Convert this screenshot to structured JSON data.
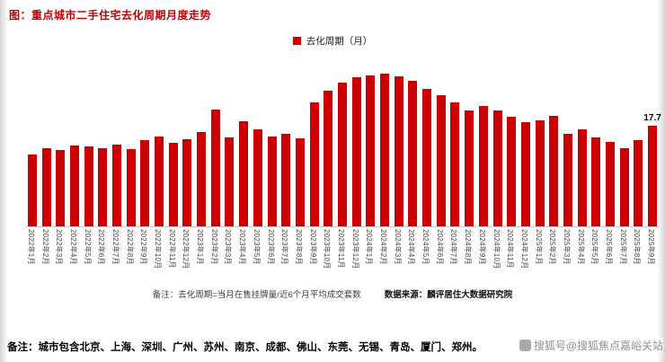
{
  "header": {
    "title": "图：重点城市二手住宅去化周期月度走势"
  },
  "legend": {
    "label": "去化周期（月）",
    "swatch_color": "#CC0000"
  },
  "chart_data": {
    "type": "bar",
    "title": "图：重点城市二手住宅去化周期月度走势",
    "legend": [
      "去化周期（月）"
    ],
    "legend_position": "top",
    "bar_color": "#CC0000",
    "grid": false,
    "xlabel": "",
    "ylabel": "去化周期（月）",
    "ylim": [
      0,
      30
    ],
    "categories": [
      "2022年1月",
      "2022年2月",
      "2022年3月",
      "2022年4月",
      "2022年5月",
      "2022年6月",
      "2022年7月",
      "2022年8月",
      "2022年9月",
      "2022年10月",
      "2022年11月",
      "2022年12月",
      "2023年1月",
      "2023年2月",
      "2023年3月",
      "2023年4月",
      "2023年5月",
      "2023年6月",
      "2023年7月",
      "2023年8月",
      "2023年9月",
      "2023年10月",
      "2023年11月",
      "2023年12月",
      "2024年1月",
      "2024年2月",
      "2024年3月",
      "2024年4月",
      "2024年5月",
      "2024年6月",
      "2024年7月",
      "2024年8月",
      "2024年9月",
      "2024年10月",
      "2024年11月",
      "2024年12月",
      "2025年1月",
      "2025年2月",
      "2025年3月",
      "2025年4月",
      "2025年5月",
      "2025年6月",
      "2025年7月",
      "2025年8月",
      "2025年9月"
    ],
    "values": [
      12.6,
      13.8,
      13.4,
      14.2,
      14.0,
      13.7,
      14.3,
      13.5,
      15.2,
      15.8,
      14.7,
      15.3,
      16.5,
      20.5,
      15.6,
      18.4,
      17.0,
      15.8,
      16.2,
      15.5,
      21.8,
      23.8,
      25.2,
      26.2,
      26.6,
      26.9,
      26.3,
      25.5,
      24.2,
      23.0,
      21.8,
      20.4,
      21.2,
      20.4,
      19.3,
      18.3,
      18.6,
      19.4,
      16.3,
      17.0,
      15.7,
      14.9,
      13.7,
      15.1,
      17.7
    ],
    "data_label": {
      "index": 44,
      "text": "17.7"
    }
  },
  "notes": {
    "formula": "备注：去化周期=当月在售挂牌量/近6个月平均成交套数",
    "source": "数据来源：麟评居住大数据研究院"
  },
  "footer": {
    "note": "备注：城市包含北京、上海、深圳、广州、苏州、南京、成都、佛山、东莞、无锡、青岛、厦门、郑州。",
    "watermark": "搜狐号@搜狐焦点嘉峪关站"
  }
}
